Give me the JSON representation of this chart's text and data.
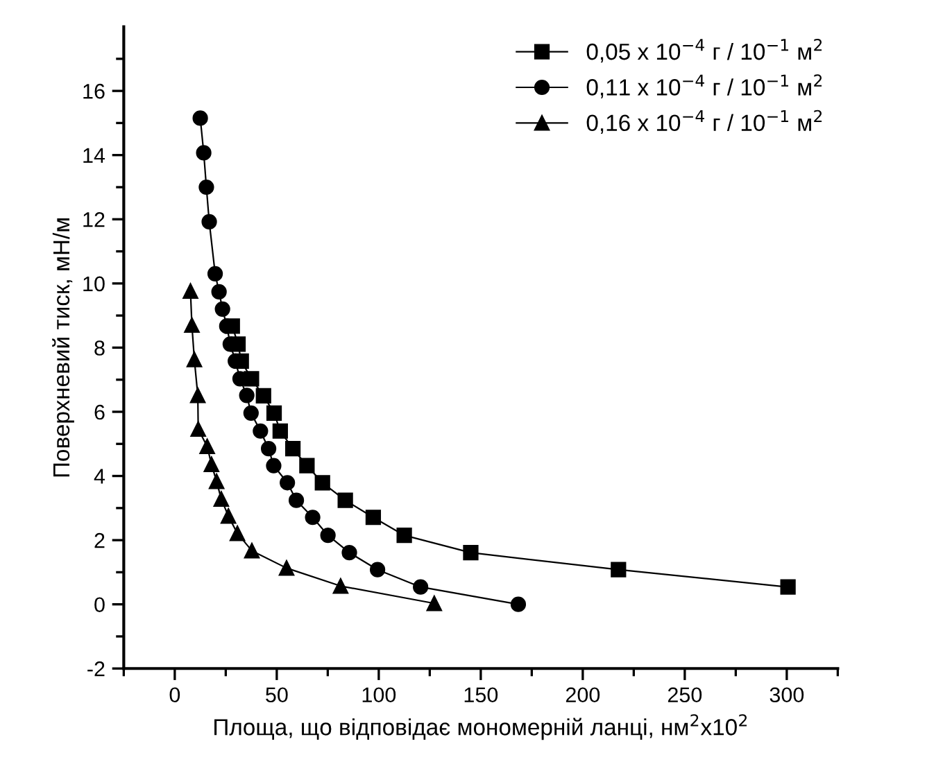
{
  "chart_data": {
    "type": "line",
    "xlabel": "Площа, що відповідає мономерній ланці, нм$^{2}$x10$^{2}$",
    "ylabel": "Поверхневий тиск, мН/м",
    "xlim": [
      -25,
      325
    ],
    "ylim": [
      -2,
      18
    ],
    "xticks": [
      {
        "value": -25,
        "label": null
      },
      0,
      {
        "value": 25,
        "label": null
      },
      50,
      {
        "value": 75,
        "label": null
      },
      100,
      {
        "value": 125,
        "label": null
      },
      150,
      {
        "value": 175,
        "label": null
      },
      200,
      {
        "value": 225,
        "label": null
      },
      250,
      {
        "value": 275,
        "label": null
      },
      300,
      {
        "value": 325,
        "label": null
      }
    ],
    "yticks": [
      -2,
      {
        "value": -1,
        "label": null
      },
      0,
      {
        "value": 1,
        "label": null
      },
      2,
      {
        "value": 3,
        "label": null
      },
      4,
      {
        "value": 5,
        "label": null
      },
      6,
      {
        "value": 7,
        "label": null
      },
      8,
      {
        "value": 9,
        "label": null
      },
      10,
      {
        "value": 11,
        "label": null
      },
      12,
      {
        "value": 13,
        "label": null
      },
      14,
      {
        "value": 15,
        "label": null
      },
      16,
      {
        "value": 17,
        "label": null
      }
    ],
    "legend": "top right",
    "grid": false,
    "line_style": "solid",
    "series": [
      {
        "name": "0,05 x 10$^{−4}$ г / 10$^{−1}$ м$^{2}$",
        "color": "#000000",
        "marker": "square",
        "x": [
          28.2,
          31.0,
          32.6,
          37.6,
          43.5,
          48.7,
          51.7,
          57.9,
          64.8,
          72.4,
          83.6,
          97.3,
          112.5,
          145.1,
          217.5,
          300.6
        ],
        "values": [
          8.67,
          8.11,
          7.58,
          7.03,
          6.5,
          5.96,
          5.4,
          4.85,
          4.32,
          3.79,
          3.24,
          2.71,
          2.15,
          1.61,
          1.08,
          0.54
        ]
      },
      {
        "name": "0,11 x 10$^{−4}$ г / 10$^{−1}$ м$^{2}$",
        "color": "#000000",
        "marker": "circle",
        "x": [
          12.5,
          14.2,
          15.5,
          16.9,
          19.8,
          21.7,
          23.4,
          25.5,
          27.2,
          29.7,
          32.0,
          35.3,
          37.4,
          42.0,
          46.0,
          48.5,
          55.2,
          59.6,
          67.6,
          75.1,
          85.6,
          99.4,
          120.5,
          168.4
        ],
        "values": [
          15.15,
          14.07,
          13.0,
          11.92,
          10.3,
          9.74,
          9.2,
          8.67,
          8.11,
          7.58,
          7.03,
          6.51,
          5.96,
          5.4,
          4.85,
          4.32,
          3.79,
          3.24,
          2.71,
          2.15,
          1.61,
          1.08,
          0.54,
          0.0
        ]
      },
      {
        "name": "0,16 x 10$^{−4}$ г / 10$^{−1}$ м$^{2}$",
        "color": "#000000",
        "marker": "triangle",
        "x": [
          7.7,
          8.4,
          9.6,
          11.3,
          11.5,
          15.9,
          18.0,
          20.5,
          22.8,
          26.3,
          30.7,
          37.8,
          54.8,
          81.3,
          127.2
        ],
        "values": [
          9.76,
          8.7,
          7.63,
          6.51,
          5.46,
          4.92,
          4.36,
          3.83,
          3.28,
          2.75,
          2.21,
          1.67,
          1.13,
          0.57,
          0.03
        ]
      }
    ]
  }
}
